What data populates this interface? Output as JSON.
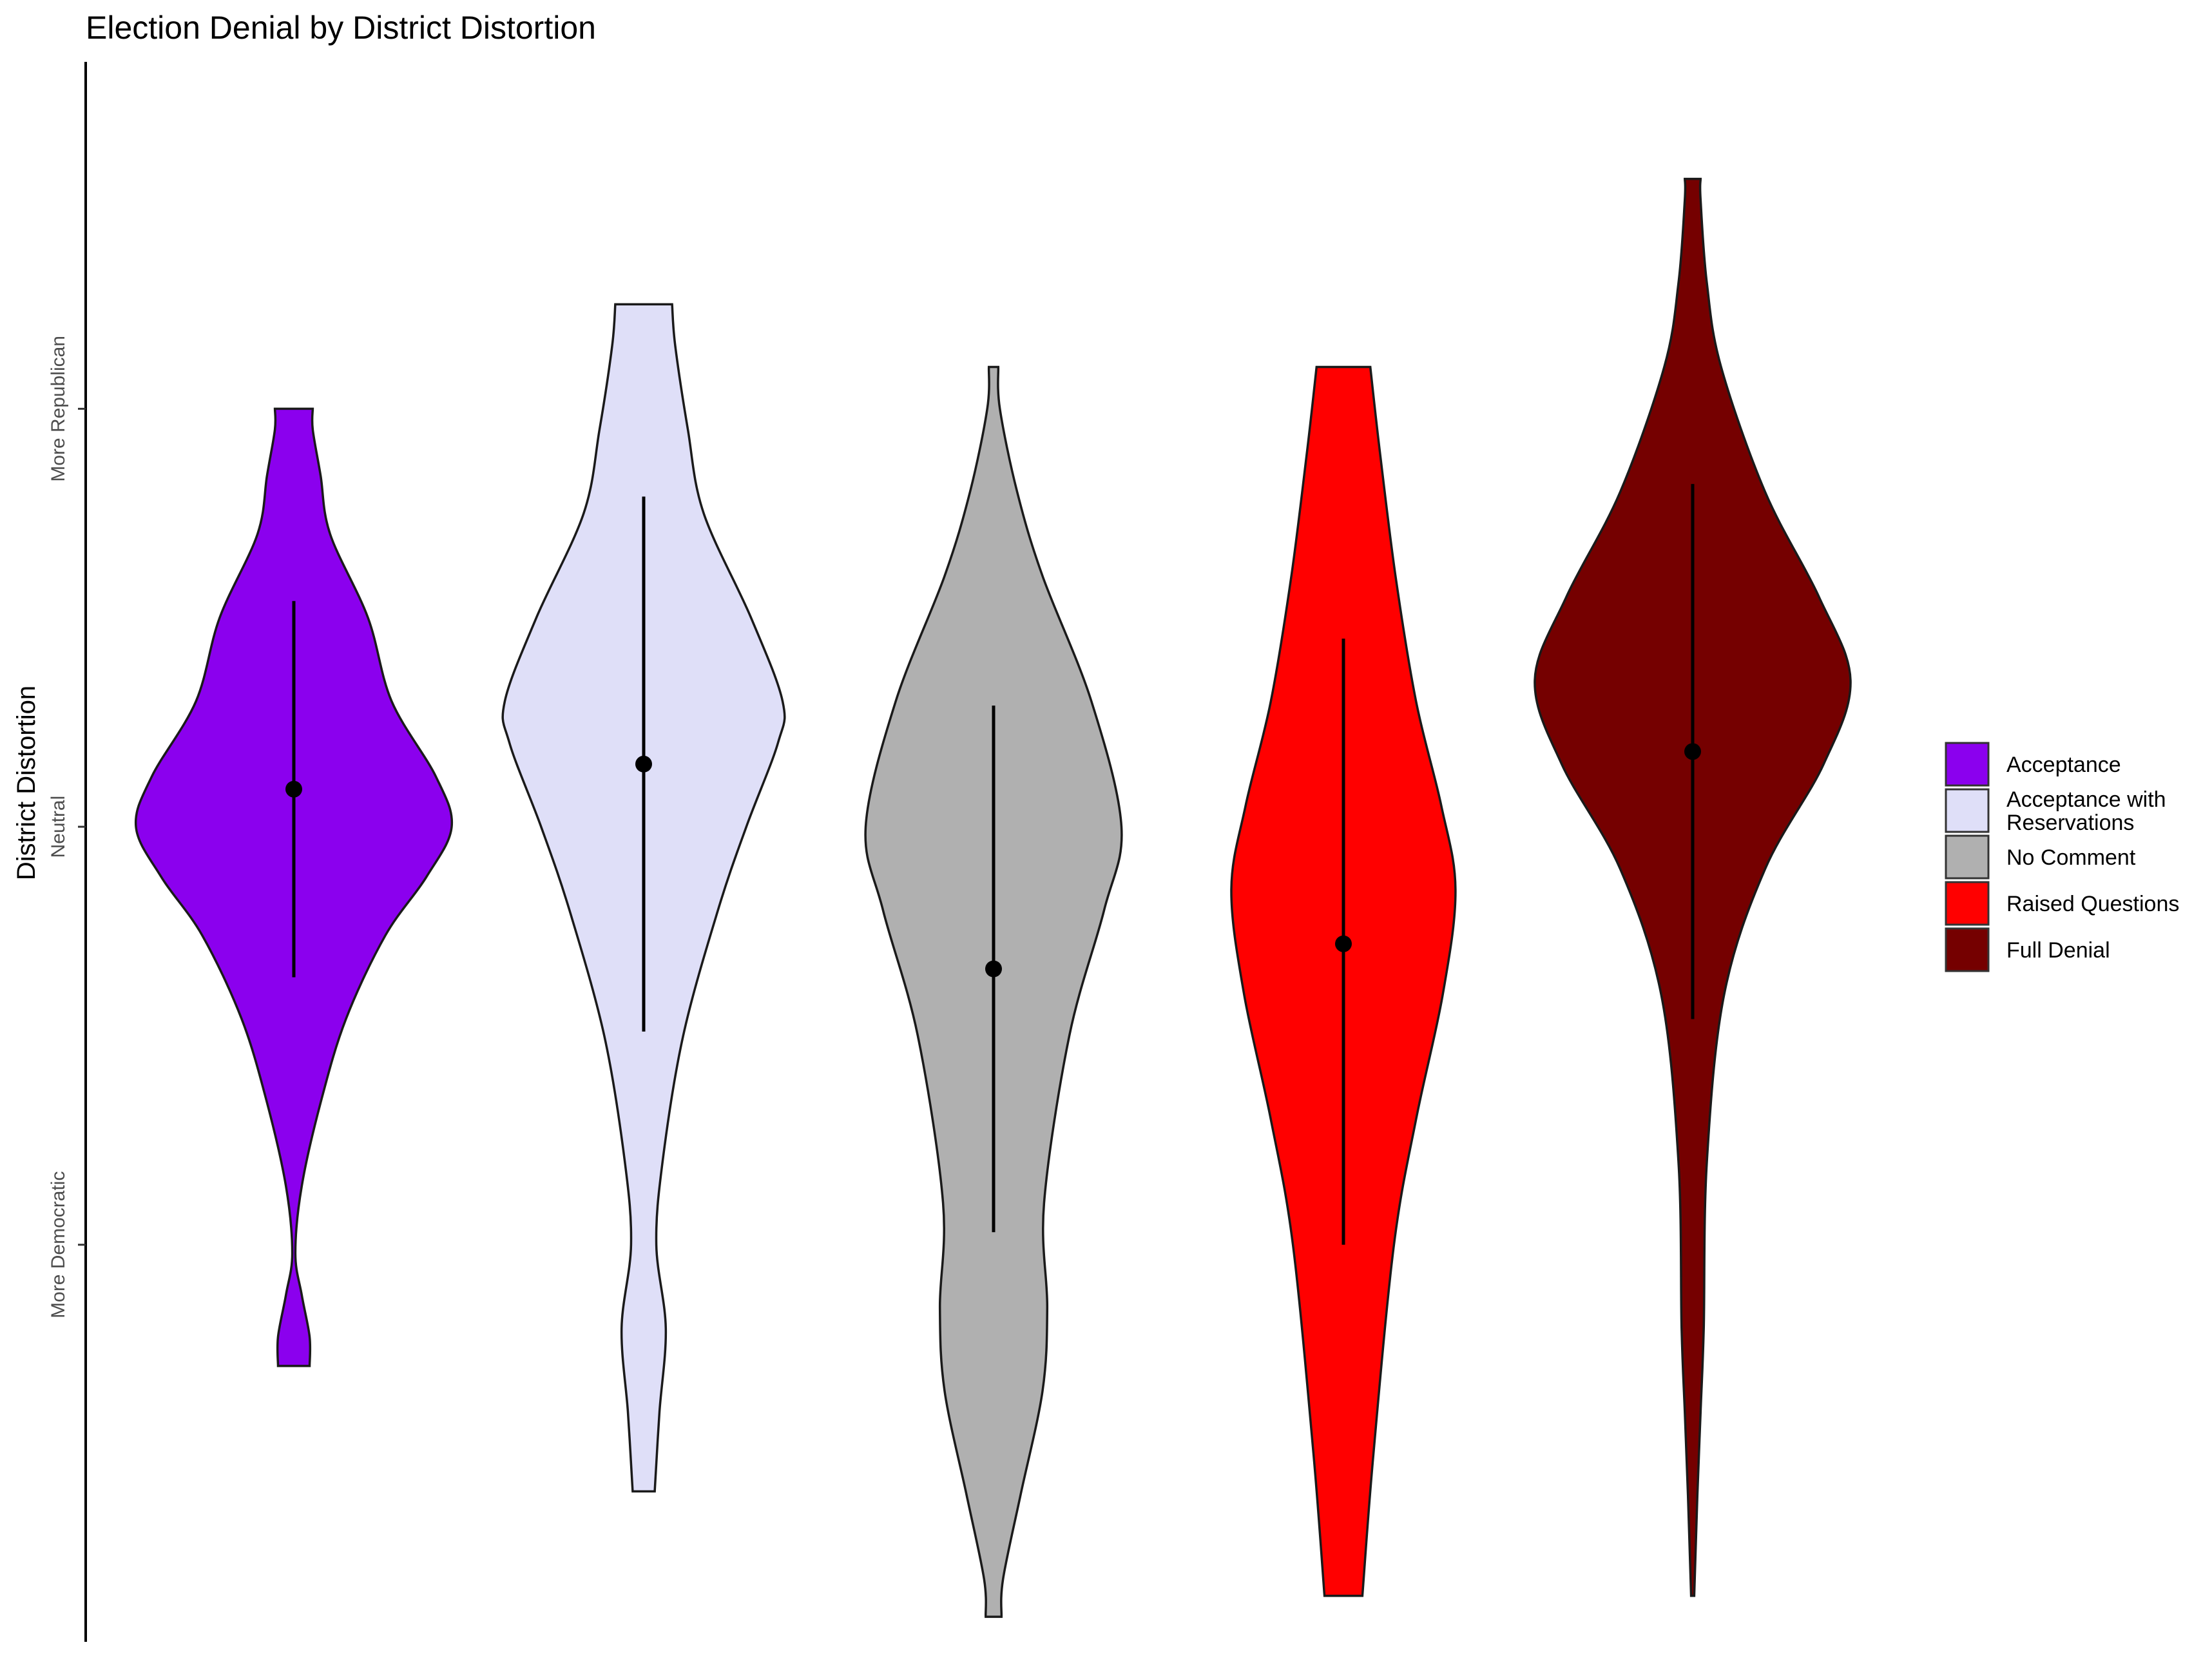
{
  "chart_data": {
    "type": "violin",
    "title": "Election Denial by District Distortion",
    "xlabel": "",
    "ylabel": "District Distortion",
    "ylim": [
      -1.95,
      1.83
    ],
    "y_ticks": [
      {
        "value": 1,
        "label": "More Republican"
      },
      {
        "value": 0,
        "label": "Neutral"
      },
      {
        "value": -1,
        "label": "More Democratic"
      }
    ],
    "grid": false,
    "legend_position": "right",
    "series": [
      {
        "name": "Acceptance",
        "color": "#8B00EE",
        "min": -1.29,
        "max": 1.0,
        "point": 0.09,
        "line_low": -0.36,
        "line_high": 0.54,
        "density": [
          [
            -1.29,
            0.1
          ],
          [
            -1.22,
            0.1
          ],
          [
            -1.12,
            0.05
          ],
          [
            -1.02,
            0.01
          ],
          [
            -0.86,
            0.05
          ],
          [
            -0.66,
            0.17
          ],
          [
            -0.46,
            0.33
          ],
          [
            -0.26,
            0.58
          ],
          [
            -0.12,
            0.84
          ],
          [
            0.0,
            1.0
          ],
          [
            0.12,
            0.9
          ],
          [
            0.3,
            0.62
          ],
          [
            0.5,
            0.47
          ],
          [
            0.7,
            0.23
          ],
          [
            0.84,
            0.17
          ],
          [
            0.95,
            0.12
          ],
          [
            1.0,
            0.12
          ]
        ]
      },
      {
        "name": "Acceptance with\nReservations",
        "color": "#DFDFF8",
        "min": -1.59,
        "max": 1.25,
        "point": 0.15,
        "line_low": -0.49,
        "line_high": 0.79,
        "density": [
          [
            -1.59,
            0.07
          ],
          [
            -1.4,
            0.1
          ],
          [
            -1.2,
            0.14
          ],
          [
            -1.0,
            0.08
          ],
          [
            -0.8,
            0.12
          ],
          [
            -0.5,
            0.25
          ],
          [
            -0.2,
            0.47
          ],
          [
            0.0,
            0.65
          ],
          [
            0.2,
            0.85
          ],
          [
            0.3,
            0.88
          ],
          [
            0.5,
            0.68
          ],
          [
            0.75,
            0.38
          ],
          [
            0.95,
            0.28
          ],
          [
            1.15,
            0.2
          ],
          [
            1.25,
            0.18
          ]
        ]
      },
      {
        "name": "No Comment",
        "color": "#B0B0B0",
        "min": -1.89,
        "max": 1.1,
        "point": -0.34,
        "line_low": -0.97,
        "line_high": 0.29,
        "density": [
          [
            -1.89,
            0.05
          ],
          [
            -1.8,
            0.06
          ],
          [
            -1.6,
            0.17
          ],
          [
            -1.35,
            0.31
          ],
          [
            -1.15,
            0.34
          ],
          [
            -0.9,
            0.32
          ],
          [
            -0.5,
            0.48
          ],
          [
            -0.2,
            0.7
          ],
          [
            0.0,
            0.81
          ],
          [
            0.3,
            0.62
          ],
          [
            0.6,
            0.31
          ],
          [
            0.8,
            0.15
          ],
          [
            1.0,
            0.04
          ],
          [
            1.1,
            0.03
          ]
        ]
      },
      {
        "name": "Raised Questions",
        "color": "#FF0000",
        "min": -1.84,
        "max": 1.1,
        "point": -0.28,
        "line_low": -1.0,
        "line_high": 0.45,
        "density": [
          [
            -1.84,
            0.12
          ],
          [
            -1.5,
            0.19
          ],
          [
            -1.0,
            0.32
          ],
          [
            -0.7,
            0.46
          ],
          [
            -0.4,
            0.63
          ],
          [
            -0.15,
            0.71
          ],
          [
            0.05,
            0.62
          ],
          [
            0.3,
            0.46
          ],
          [
            0.6,
            0.33
          ],
          [
            0.9,
            0.23
          ],
          [
            1.1,
            0.17
          ]
        ]
      },
      {
        "name": "Full Denial",
        "color": "#750000",
        "min": -1.84,
        "max": 1.55,
        "point": 0.18,
        "line_low": -0.46,
        "line_high": 0.82,
        "density": [
          [
            -1.84,
            0.01
          ],
          [
            -1.6,
            0.03
          ],
          [
            -1.4,
            0.05
          ],
          [
            -1.2,
            0.07
          ],
          [
            -0.8,
            0.09
          ],
          [
            -0.4,
            0.2
          ],
          [
            -0.1,
            0.46
          ],
          [
            0.15,
            0.83
          ],
          [
            0.35,
            1.0
          ],
          [
            0.55,
            0.8
          ],
          [
            0.8,
            0.46
          ],
          [
            1.1,
            0.18
          ],
          [
            1.3,
            0.09
          ],
          [
            1.5,
            0.05
          ],
          [
            1.55,
            0.05
          ]
        ]
      }
    ]
  }
}
